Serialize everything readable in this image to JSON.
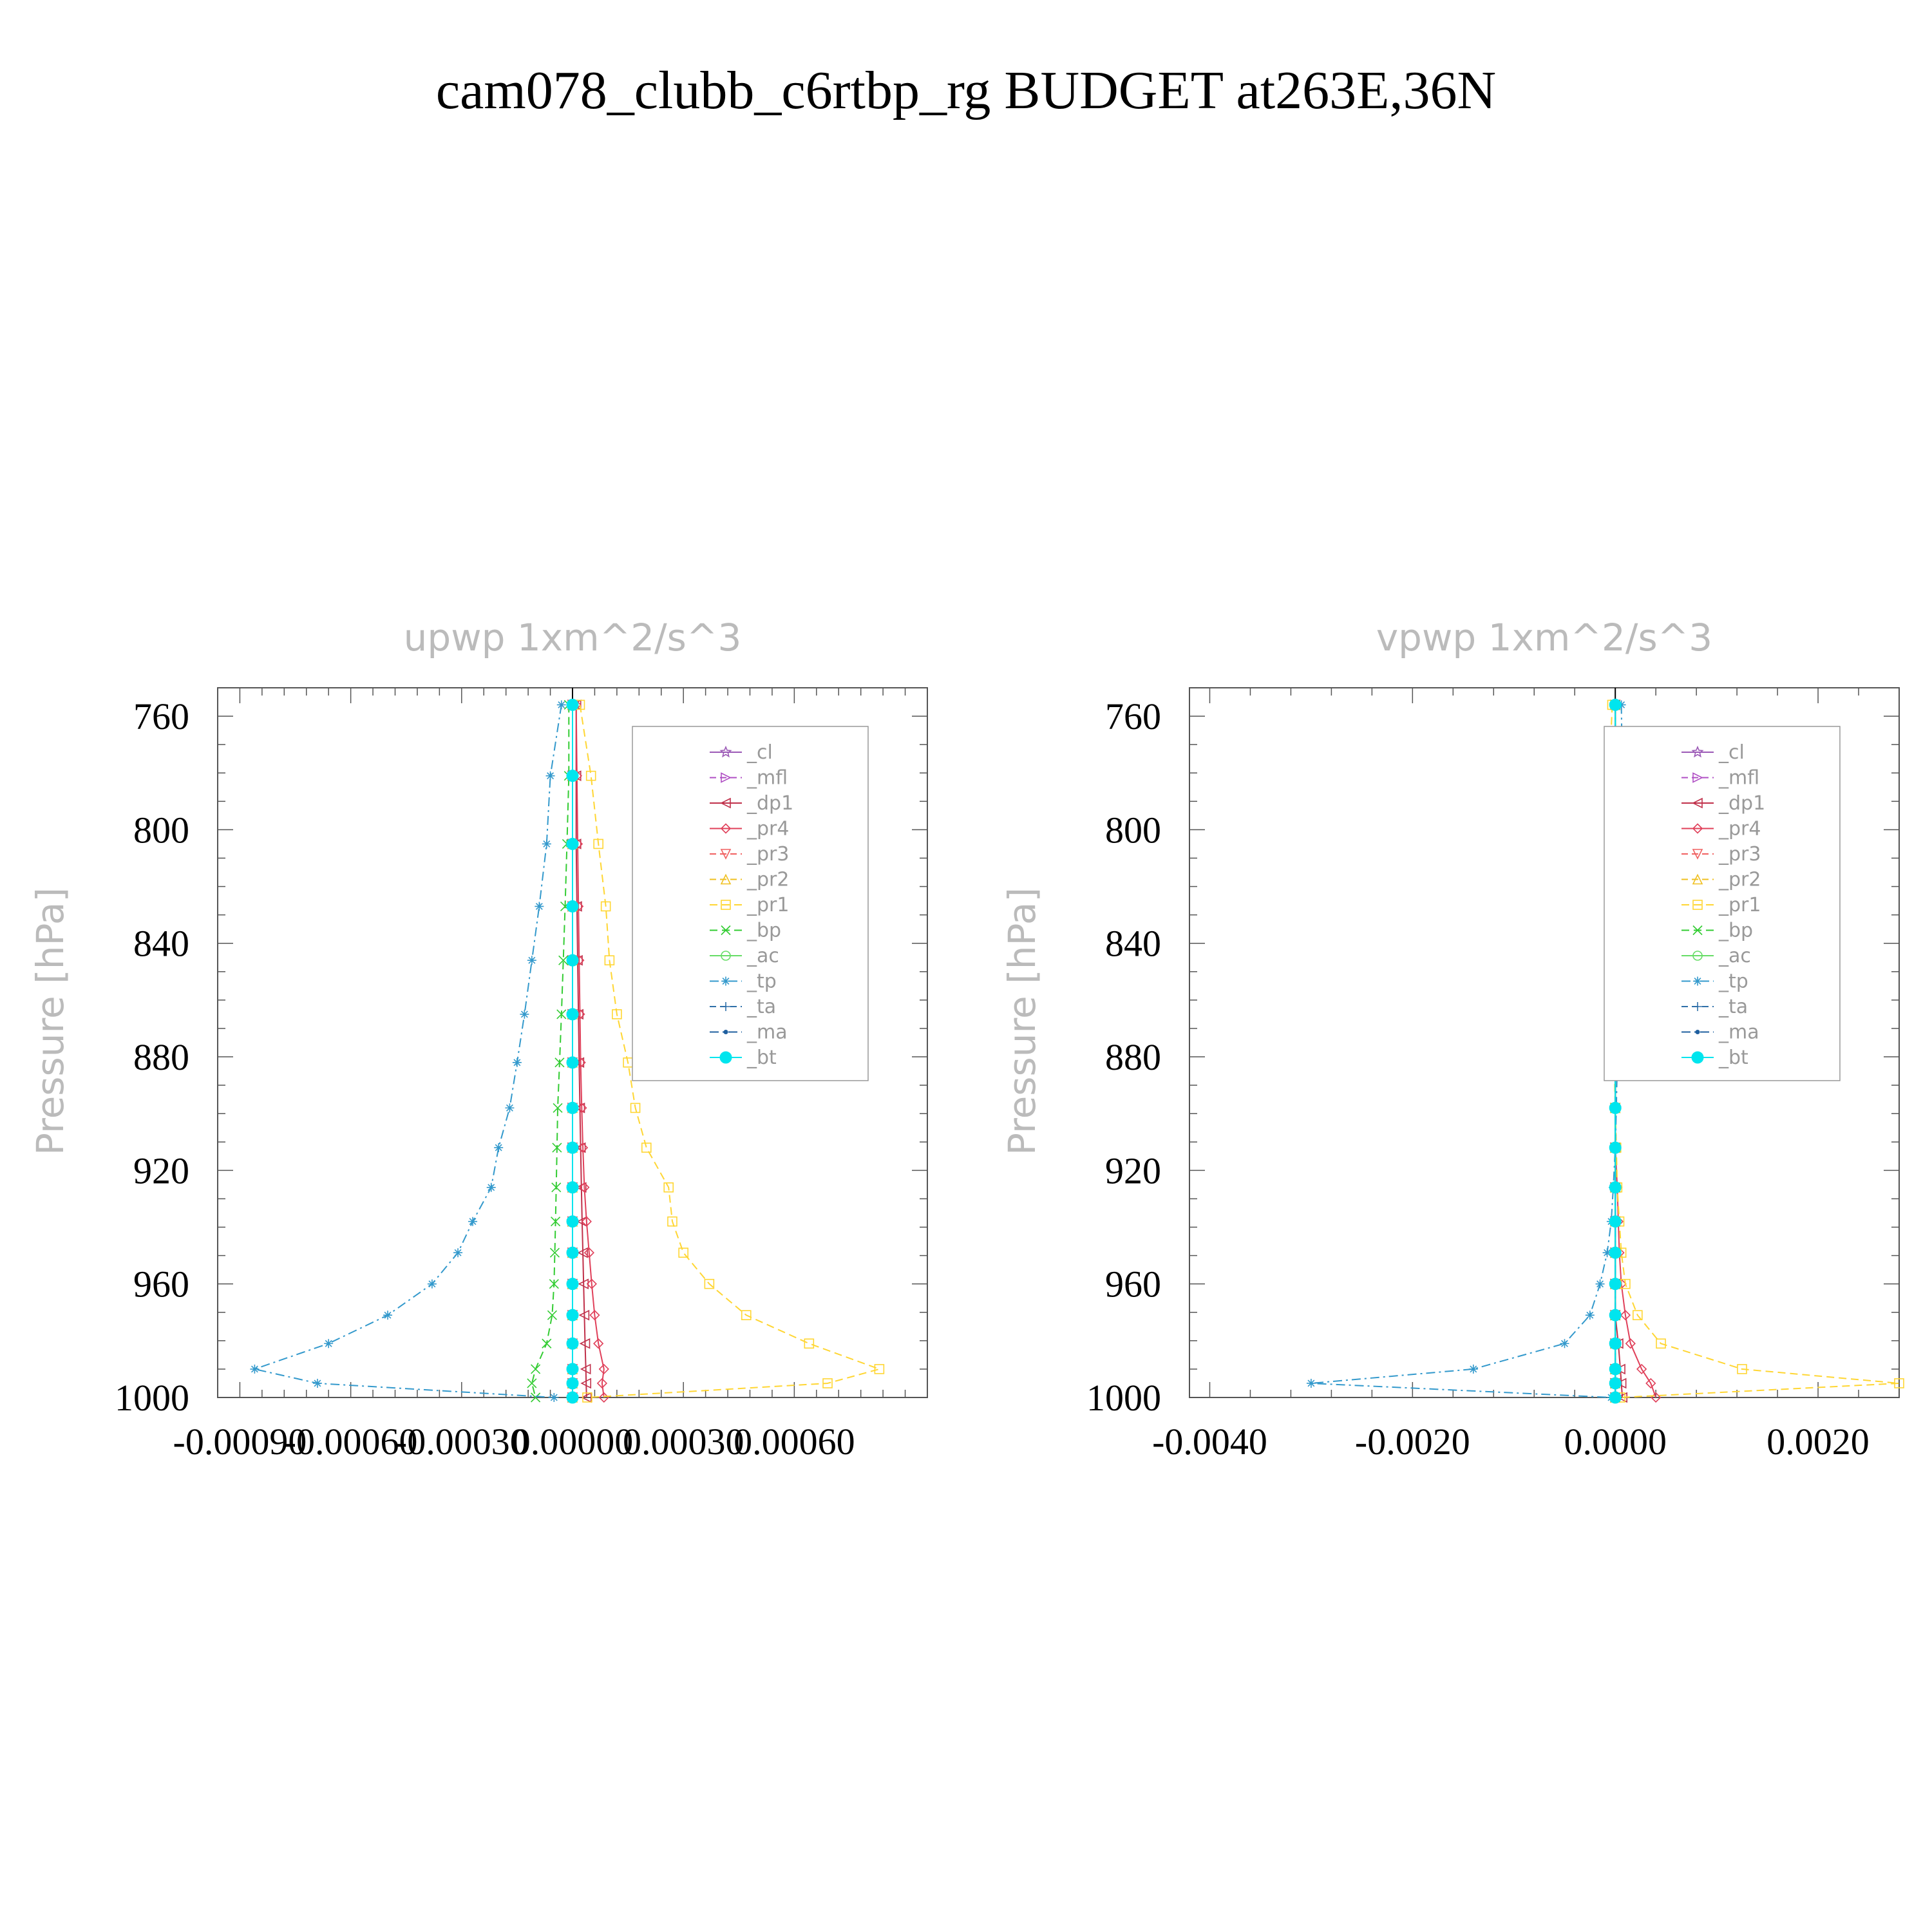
{
  "figure": {
    "title": "cam078_clubb_c6rtbp_rg  BUDGET at263E,36N"
  },
  "legend_entries": [
    {
      "label": "_cl",
      "color": "#9b59b6",
      "marker": "star",
      "dash": ""
    },
    {
      "label": "_mfl",
      "color": "#b04fc4",
      "marker": "triangle-right",
      "dash": "10,6"
    },
    {
      "label": "_dp1",
      "color": "#c0304a",
      "marker": "triangle-left",
      "dash": ""
    },
    {
      "label": "_pr4",
      "color": "#e0405a",
      "marker": "diamond",
      "dash": ""
    },
    {
      "label": "_pr3",
      "color": "#f06060",
      "marker": "triangle-down",
      "dash": "10,6"
    },
    {
      "label": "_pr2",
      "color": "#f0c020",
      "marker": "triangle-up",
      "dash": "10,6"
    },
    {
      "label": "_pr1",
      "color": "#ffd633",
      "marker": "square",
      "dash": "12,7"
    },
    {
      "label": "_bp",
      "color": "#33cc33",
      "marker": "x",
      "dash": "12,7"
    },
    {
      "label": "_ac",
      "color": "#66dd66",
      "marker": "circle",
      "dash": ""
    },
    {
      "label": "_tp",
      "color": "#3399cc",
      "marker": "asterisk",
      "dash": "14,6,3,6"
    },
    {
      "label": "_ta",
      "color": "#2f6fa8",
      "marker": "plus",
      "dash": "10,6"
    },
    {
      "label": "_ma",
      "color": "#1f5f9f",
      "marker": "dot",
      "dash": "14,6,3,6"
    },
    {
      "label": "_bt",
      "color": "#00e5ee",
      "marker": "filled-circle",
      "dash": ""
    }
  ],
  "chart_data": [
    {
      "type": "line",
      "title": "upwp    1xm^2/s^3",
      "ylabel": "Pressure  [hPa]",
      "xlabel": "",
      "ylim": [
        1000,
        750
      ],
      "xlim": [
        -0.00096,
        0.00096
      ],
      "yticks": [
        760,
        800,
        840,
        880,
        920,
        960,
        1000
      ],
      "xticks": [
        -0.0009,
        -0.0006,
        -0.0003,
        0.0,
        0.0003,
        0.0006
      ],
      "xtick_labels": [
        "-0.00090",
        "-0.00060",
        "-0.00030",
        "0.00000",
        "0.00030",
        "0.00060"
      ],
      "legend_position": "upper-right",
      "pressure_levels": [
        756,
        781,
        805,
        827,
        846,
        865,
        882,
        898,
        912,
        926,
        938,
        949,
        960,
        971,
        981,
        990,
        995,
        1000
      ],
      "series": [
        {
          "name": "_cl",
          "values": [
            0,
            0,
            0,
            0,
            0,
            0,
            0,
            0,
            0,
            0,
            0,
            0,
            0,
            0,
            0,
            0,
            0,
            0
          ]
        },
        {
          "name": "_mfl",
          "values": [
            0,
            0,
            0,
            0,
            0,
            0,
            0,
            0,
            0,
            0,
            0,
            0,
            0,
            0,
            0,
            0,
            0,
            0
          ]
        },
        {
          "name": "_dp1",
          "values": [
            1e-05,
            1e-05,
            1e-05,
            1.2e-05,
            1.4e-05,
            1.6e-05,
            1.8e-05,
            2e-05,
            2.2e-05,
            2.4e-05,
            2.6e-05,
            2.8e-05,
            3e-05,
            3.2e-05,
            3.4e-05,
            3.6e-05,
            3.7e-05,
            3.8e-05
          ]
        },
        {
          "name": "_pr4",
          "values": [
            1e-05,
            1.2e-05,
            1.4e-05,
            1.6e-05,
            1.8e-05,
            2e-05,
            2.2e-05,
            2.5e-05,
            2.8e-05,
            3.2e-05,
            3.8e-05,
            4.5e-05,
            5.2e-05,
            6e-05,
            7e-05,
            8.5e-05,
            8e-05,
            8.5e-05
          ]
        },
        {
          "name": "_pr3",
          "values": [
            0,
            0,
            0,
            0,
            0,
            0,
            0,
            0,
            0,
            0,
            0,
            0,
            0,
            0,
            0,
            0,
            0,
            0
          ]
        },
        {
          "name": "_pr2",
          "values": [
            0,
            0,
            0,
            0,
            0,
            0,
            0,
            0,
            0,
            0,
            0,
            0,
            0,
            0,
            0,
            0,
            0,
            0
          ]
        },
        {
          "name": "_pr1",
          "values": [
            2e-05,
            5e-05,
            7e-05,
            9e-05,
            0.0001,
            0.00012,
            0.00015,
            0.00017,
            0.0002,
            0.00026,
            0.00027,
            0.0003,
            0.00037,
            0.00047,
            0.00064,
            0.00083,
            0.00069,
            4e-05
          ]
        },
        {
          "name": "_bp",
          "values": [
            -1e-05,
            -1e-05,
            -1.5e-05,
            -2e-05,
            -2.5e-05,
            -3e-05,
            -3.5e-05,
            -4e-05,
            -4.2e-05,
            -4.4e-05,
            -4.6e-05,
            -4.8e-05,
            -5e-05,
            -5.5e-05,
            -7e-05,
            -0.0001,
            -0.00011,
            -0.0001
          ]
        },
        {
          "name": "_ac",
          "values": [
            0,
            0,
            0,
            0,
            0,
            0,
            0,
            0,
            0,
            0,
            0,
            0,
            0,
            0,
            0,
            0,
            0,
            0
          ]
        },
        {
          "name": "_tp",
          "values": [
            -3e-05,
            -6e-05,
            -7e-05,
            -9e-05,
            -0.00011,
            -0.00013,
            -0.00015,
            -0.00017,
            -0.0002,
            -0.00022,
            -0.00027,
            -0.00031,
            -0.00038,
            -0.0005,
            -0.00066,
            -0.00086,
            -0.00069,
            -5e-05
          ]
        },
        {
          "name": "_ta",
          "values": [
            0,
            0,
            0,
            0,
            0,
            0,
            0,
            0,
            0,
            0,
            0,
            0,
            0,
            0,
            0,
            0,
            0,
            0
          ]
        },
        {
          "name": "_ma",
          "values": [
            0,
            0,
            0,
            0,
            0,
            0,
            0,
            0,
            0,
            0,
            0,
            0,
            0,
            0,
            0,
            0,
            0,
            0
          ]
        },
        {
          "name": "_bt",
          "values": [
            0,
            0,
            0,
            0,
            0,
            0,
            0,
            0,
            0,
            0,
            0,
            0,
            0,
            0,
            0,
            0,
            0,
            0
          ]
        }
      ]
    },
    {
      "type": "line",
      "title": "vpwp    1xm^2/s^3",
      "ylabel": "Pressure  [hPa]",
      "xlabel": "",
      "ylim": [
        1000,
        750
      ],
      "xlim": [
        -0.0042,
        0.0028
      ],
      "yticks": [
        760,
        800,
        840,
        880,
        920,
        960,
        1000
      ],
      "xticks": [
        -0.004,
        -0.002,
        0.0,
        0.002
      ],
      "xtick_labels": [
        "-0.0040",
        "-0.0020",
        "0.0000",
        "0.0020"
      ],
      "legend_position": "upper-right",
      "pressure_levels": [
        756,
        781,
        805,
        827,
        846,
        865,
        882,
        898,
        912,
        926,
        938,
        949,
        960,
        971,
        981,
        990,
        995,
        1000
      ],
      "series": [
        {
          "name": "_cl",
          "values": [
            0,
            0,
            0,
            0,
            0,
            0,
            0,
            0,
            0,
            0,
            0,
            0,
            0,
            0,
            0,
            0,
            0,
            0
          ]
        },
        {
          "name": "_mfl",
          "values": [
            0,
            0,
            0,
            0,
            0,
            0,
            0,
            0,
            0,
            0,
            0,
            0,
            0,
            0,
            0,
            0,
            0,
            0
          ]
        },
        {
          "name": "_dp1",
          "values": [
            0,
            0,
            0,
            0,
            0,
            0,
            0,
            0,
            0,
            0,
            0,
            0,
            0,
            0,
            3e-05,
            5e-05,
            6e-05,
            7e-05
          ]
        },
        {
          "name": "_pr4",
          "values": [
            0,
            0,
            0,
            0,
            0,
            0,
            0,
            0,
            0,
            2e-05,
            3e-05,
            4e-05,
            6e-05,
            0.0001,
            0.00015,
            0.00026,
            0.00035,
            0.0004
          ]
        },
        {
          "name": "_pr3",
          "values": [
            0,
            0,
            0,
            0,
            0,
            0,
            0,
            0,
            0,
            0,
            0,
            0,
            0,
            0,
            0,
            0,
            0,
            0
          ]
        },
        {
          "name": "_pr2",
          "values": [
            0,
            0,
            0,
            0,
            0,
            0,
            0,
            0,
            0,
            0,
            0,
            0,
            0,
            0,
            0,
            0,
            0,
            0
          ]
        },
        {
          "name": "_pr1",
          "values": [
            -3e-05,
            -6e-05,
            -5e-05,
            -4e-05,
            -3e-05,
            -2e-05,
            -1e-05,
            0,
            1e-05,
            2e-05,
            4e-05,
            6e-05,
            0.0001,
            0.00022,
            0.00045,
            0.00125,
            0.0028,
            5e-05
          ]
        },
        {
          "name": "_bp",
          "values": [
            0,
            0,
            0,
            0,
            0,
            0,
            0,
            0,
            0,
            0,
            0,
            0,
            0,
            0,
            0,
            0,
            0,
            0
          ]
        },
        {
          "name": "_ac",
          "values": [
            0,
            0,
            0,
            0,
            0,
            0,
            0,
            0,
            0,
            0,
            0,
            0,
            0,
            0,
            0,
            0,
            0,
            0
          ]
        },
        {
          "name": "_tp",
          "values": [
            6e-05,
            7e-05,
            6e-05,
            5e-05,
            4e-05,
            3e-05,
            2e-05,
            1e-05,
            0,
            -2e-05,
            -4e-05,
            -8e-05,
            -0.00015,
            -0.00025,
            -0.0005,
            -0.0014,
            -0.003,
            -4e-05
          ]
        },
        {
          "name": "_ta",
          "values": [
            0,
            0,
            0,
            0,
            0,
            0,
            0,
            0,
            0,
            0,
            0,
            0,
            0,
            0,
            0,
            0,
            0,
            0
          ]
        },
        {
          "name": "_ma",
          "values": [
            0,
            0,
            0,
            0,
            0,
            0,
            0,
            0,
            0,
            0,
            0,
            0,
            0,
            0,
            0,
            0,
            0,
            0
          ]
        },
        {
          "name": "_bt",
          "values": [
            0,
            0,
            0,
            0,
            0,
            0,
            0,
            0,
            0,
            0,
            0,
            0,
            0,
            0,
            0,
            0,
            0,
            0
          ]
        }
      ]
    }
  ]
}
